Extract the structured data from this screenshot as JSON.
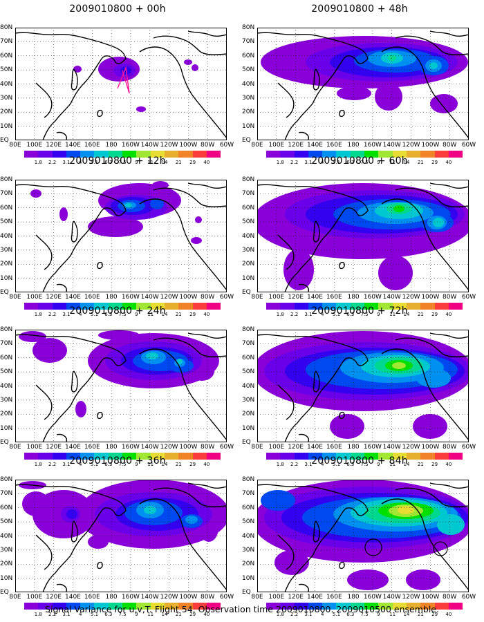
{
  "panels": [
    {
      "id": "p00",
      "title": "2009010800 + 00h",
      "col": 0,
      "row": 0
    },
    {
      "id": "p12",
      "title": "2009010800 + 12h",
      "col": 0,
      "row": 1
    },
    {
      "id": "p24",
      "title": "2009010800 + 24h",
      "col": 0,
      "row": 2
    },
    {
      "id": "p36",
      "title": "2009010800 + 36h",
      "col": 0,
      "row": 3
    },
    {
      "id": "p48",
      "title": "2009010800 + 48h",
      "col": 1,
      "row": 0
    },
    {
      "id": "p60",
      "title": "2009010800 + 60h",
      "col": 1,
      "row": 1
    },
    {
      "id": "p72",
      "title": "2009010800 + 72h",
      "col": 1,
      "row": 2
    },
    {
      "id": "p84",
      "title": "2009010800 + 84h",
      "col": 1,
      "row": 3
    }
  ],
  "lat_labels": [
    "80N",
    "70N",
    "60N",
    "50N",
    "40N",
    "30N",
    "20N",
    "10N",
    "EQ"
  ],
  "lon_labels": [
    "80E",
    "100E",
    "120E",
    "140E",
    "160E",
    "180",
    "160W",
    "140W",
    "120W",
    "100W",
    "80W",
    "60W"
  ],
  "colorbar": {
    "labels": [
      "1.8",
      "2.2",
      "3.1",
      "4",
      "5.1",
      "6.3",
      "7.5",
      "9",
      "11",
      "14",
      "21",
      "29",
      "40"
    ],
    "colors": [
      "#8a00d8",
      "#6a00ea",
      "#3300f0",
      "#0048f0",
      "#0090f0",
      "#00c8d0",
      "#00d890",
      "#00e000",
      "#a0e632",
      "#e6dc32",
      "#e6af2d",
      "#f08228",
      "#fa3c3c",
      "#f00082"
    ]
  },
  "footer": "Signal Variance for u,v,T. Flight 54. Observation time 2009010800. 2009010500 ensemble."
}
